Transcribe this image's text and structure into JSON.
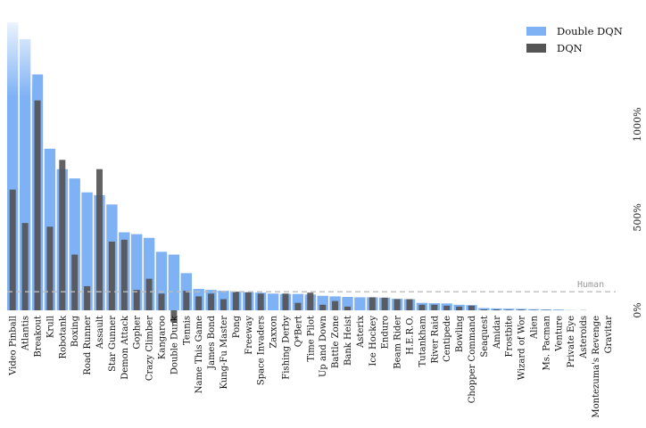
{
  "chart_data": {
    "type": "bar",
    "categories": [
      "Video Pinball",
      "Atlantis",
      "Breakout",
      "Krull",
      "Robotank",
      "Boxing",
      "Road Runner",
      "Assault",
      "Star Gunner",
      "Demon Attack",
      "Gopher",
      "Crazy Climber",
      "Kangaroo",
      "Double Dunk",
      "Tennis",
      "Name This Game",
      "James Bond",
      "Kung-Fu Master",
      "Pong",
      "Freeway",
      "Space Invaders",
      "Zaxxon",
      "Fishing Derby",
      "Q*Bert",
      "Time Pilot",
      "Up and Down",
      "Battle Zone",
      "Bank Heist",
      "Asterix",
      "Ice Hockey",
      "Enduro",
      "Beam Rider",
      "H.E.R.O.",
      "Tutankham",
      "River Raid",
      "Centipede",
      "Bowling",
      "Chopper Command",
      "Seaquest",
      "Amidar",
      "Frostbite",
      "Wizard of Wor",
      "Alien",
      "Ms. Pacman",
      "Venture",
      "Private Eye",
      "Asteroids",
      "Montezuma's Revenge",
      "Gravitar"
    ],
    "series": [
      {
        "name": "Double DQN",
        "color": "#7fb2f4",
        "values": [
          1550,
          1460,
          1270,
          870,
          760,
          710,
          635,
          620,
          570,
          420,
          410,
          390,
          315,
          300,
          200,
          115,
          110,
          105,
          100,
          97,
          95,
          90,
          88,
          88,
          85,
          78,
          75,
          72,
          70,
          70,
          68,
          62,
          60,
          40,
          38,
          37,
          30,
          28,
          12,
          10,
          9,
          8,
          6,
          5,
          4,
          1,
          0,
          0,
          0
        ]
      },
      {
        "name": "DQN",
        "color": "#555555",
        "values": [
          650,
          470,
          1130,
          450,
          810,
          300,
          130,
          760,
          370,
          380,
          110,
          170,
          90,
          -65,
          105,
          75,
          90,
          60,
          100,
          97,
          90,
          0,
          90,
          40,
          95,
          30,
          50,
          20,
          0,
          70,
          68,
          60,
          60,
          30,
          30,
          25,
          20,
          25,
          5,
          5,
          3,
          4,
          2,
          2,
          1,
          0,
          1,
          0,
          0
        ]
      }
    ],
    "ytick_labels": [
      "0%",
      "500%",
      "1000%"
    ],
    "yticks": [
      0,
      500,
      1000
    ],
    "ylim": [
      -110,
      1620
    ],
    "reference_line": {
      "label": "Human",
      "value": 100
    },
    "legend_position": "top-right",
    "grid": false
  }
}
